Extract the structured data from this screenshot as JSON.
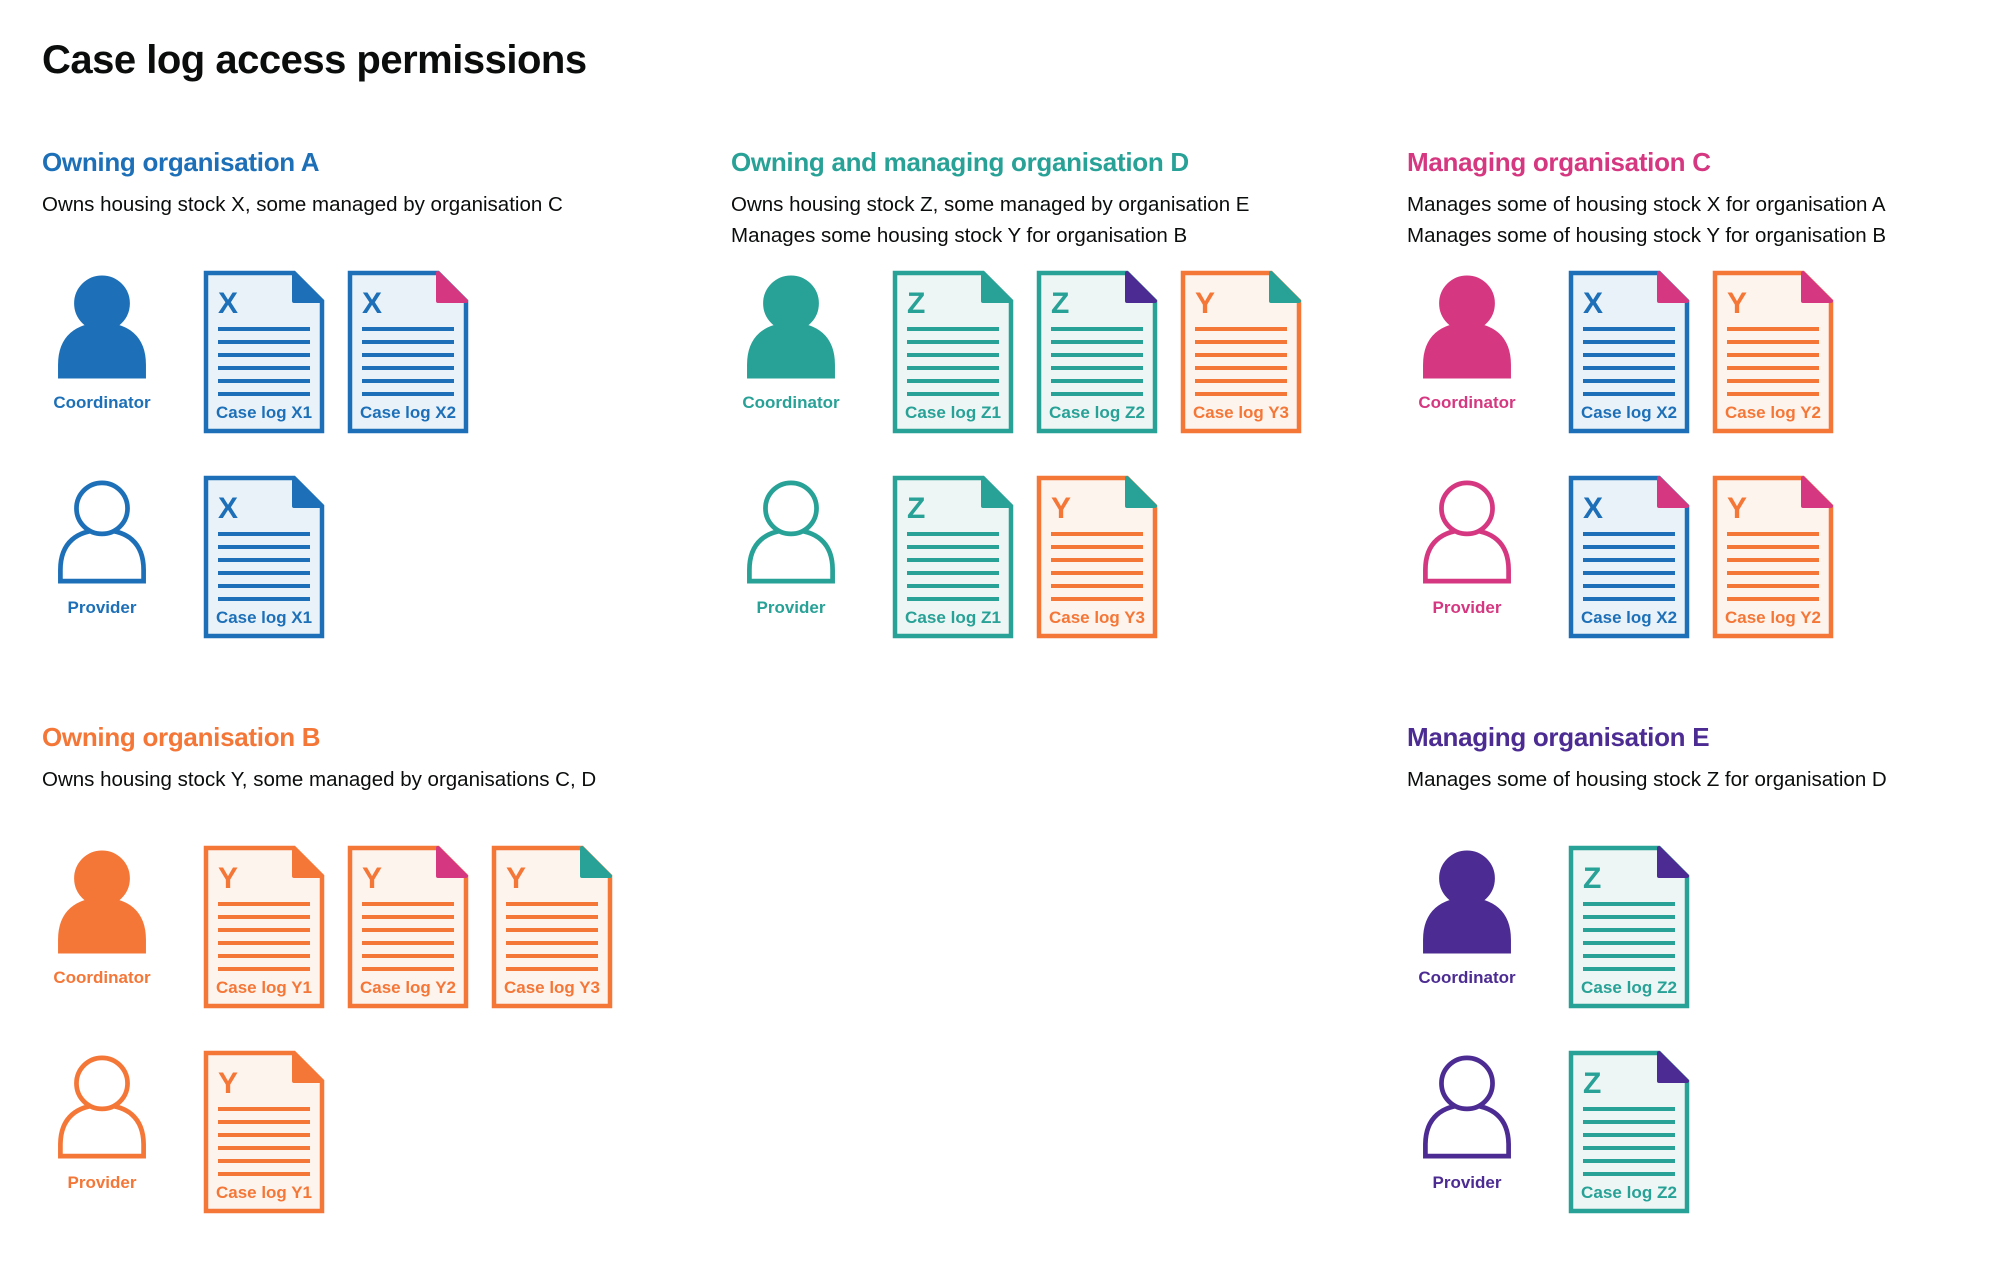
{
  "title": "Case log access permissions",
  "palette": {
    "blue": "#1d70b8",
    "turquoise": "#28a197",
    "pink": "#d53880",
    "orange": "#f47738",
    "purple": "#4c2c92",
    "text": "#0b0c0c",
    "blue_fill": "#eaf2f9",
    "turquoise_fill": "#edf6f4",
    "orange_fill": "#fdf4ed",
    "background": "#ffffff"
  },
  "sections": [
    {
      "id": "org-a",
      "heading": "Owning organisation A",
      "color": "blue",
      "description_lines": [
        "Owns housing stock X, some managed by organisation C"
      ],
      "rows": [
        {
          "role": "Coordinator",
          "person_style": "filled",
          "case_logs": [
            {
              "letter": "X",
              "label": "Case log X1",
              "doc_color": "blue",
              "fold_color": "blue"
            },
            {
              "letter": "X",
              "label": "Case log X2",
              "doc_color": "blue",
              "fold_color": "pink"
            }
          ]
        },
        {
          "role": "Provider",
          "person_style": "outline",
          "case_logs": [
            {
              "letter": "X",
              "label": "Case log X1",
              "doc_color": "blue",
              "fold_color": "blue"
            }
          ]
        }
      ]
    },
    {
      "id": "org-d",
      "heading": "Owning and managing organisation D",
      "color": "turquoise",
      "description_lines": [
        "Owns housing stock Z, some managed by organisation E",
        "Manages some housing stock Y for organisation B"
      ],
      "rows": [
        {
          "role": "Coordinator",
          "person_style": "filled",
          "case_logs": [
            {
              "letter": "Z",
              "label": "Case log Z1",
              "doc_color": "turquoise",
              "fold_color": "turquoise"
            },
            {
              "letter": "Z",
              "label": "Case log Z2",
              "doc_color": "turquoise",
              "fold_color": "purple"
            },
            {
              "letter": "Y",
              "label": "Case log Y3",
              "doc_color": "orange",
              "fold_color": "turquoise"
            }
          ]
        },
        {
          "role": "Provider",
          "person_style": "outline",
          "case_logs": [
            {
              "letter": "Z",
              "label": "Case log Z1",
              "doc_color": "turquoise",
              "fold_color": "turquoise"
            },
            {
              "letter": "Y",
              "label": "Case log Y3",
              "doc_color": "orange",
              "fold_color": "turquoise"
            }
          ]
        }
      ]
    },
    {
      "id": "org-c",
      "heading": "Managing organisation C",
      "color": "pink",
      "description_lines": [
        "Manages some of housing stock X for organisation A",
        "Manages some of housing stock Y for organisation B"
      ],
      "rows": [
        {
          "role": "Coordinator",
          "person_style": "filled",
          "case_logs": [
            {
              "letter": "X",
              "label": "Case log X2",
              "doc_color": "blue",
              "fold_color": "pink"
            },
            {
              "letter": "Y",
              "label": "Case log Y2",
              "doc_color": "orange",
              "fold_color": "pink"
            }
          ]
        },
        {
          "role": "Provider",
          "person_style": "outline",
          "case_logs": [
            {
              "letter": "X",
              "label": "Case log X2",
              "doc_color": "blue",
              "fold_color": "pink"
            },
            {
              "letter": "Y",
              "label": "Case log Y2",
              "doc_color": "orange",
              "fold_color": "pink"
            }
          ]
        }
      ]
    },
    {
      "id": "org-b",
      "heading": "Owning organisation B",
      "color": "orange",
      "description_lines": [
        "Owns housing stock Y, some managed by organisations C, D"
      ],
      "rows": [
        {
          "role": "Coordinator",
          "person_style": "filled",
          "case_logs": [
            {
              "letter": "Y",
              "label": "Case log Y1",
              "doc_color": "orange",
              "fold_color": "orange"
            },
            {
              "letter": "Y",
              "label": "Case log Y2",
              "doc_color": "orange",
              "fold_color": "pink"
            },
            {
              "letter": "Y",
              "label": "Case log Y3",
              "doc_color": "orange",
              "fold_color": "turquoise"
            }
          ]
        },
        {
          "role": "Provider",
          "person_style": "outline",
          "case_logs": [
            {
              "letter": "Y",
              "label": "Case log Y1",
              "doc_color": "orange",
              "fold_color": "orange"
            }
          ]
        }
      ]
    },
    {
      "id": "org-e",
      "heading": "Managing organisation E",
      "color": "purple",
      "description_lines": [
        "Manages some of housing stock Z for organisation D"
      ],
      "rows": [
        {
          "role": "Coordinator",
          "person_style": "filled",
          "case_logs": [
            {
              "letter": "Z",
              "label": "Case log Z2",
              "doc_color": "turquoise",
              "fold_color": "purple"
            }
          ]
        },
        {
          "role": "Provider",
          "person_style": "outline",
          "case_logs": [
            {
              "letter": "Z",
              "label": "Case log Z2",
              "doc_color": "turquoise",
              "fold_color": "purple"
            }
          ]
        }
      ]
    }
  ]
}
